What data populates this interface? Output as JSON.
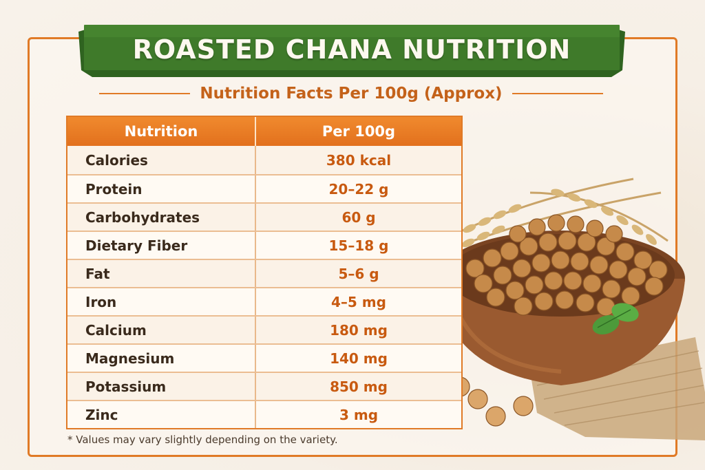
{
  "header": {
    "title": "ROASTED CHANA NUTRITION",
    "subtitle": "Nutrition Facts Per 100g (Approx)"
  },
  "table": {
    "columns": [
      "Nutrition",
      "Per 100g"
    ],
    "rows": [
      {
        "name": "Calories",
        "value": "380 kcal"
      },
      {
        "name": "Protein",
        "value": "20–22 g"
      },
      {
        "name": "Carbohydrates",
        "value": "60 g"
      },
      {
        "name": "Dietary Fiber",
        "value": "15–18 g"
      },
      {
        "name": "Fat",
        "value": "5–6 g"
      },
      {
        "name": "Iron",
        "value": "4–5 mg"
      },
      {
        "name": "Calcium",
        "value": "180 mg"
      },
      {
        "name": "Magnesium",
        "value": "140 mg"
      },
      {
        "name": "Potassium",
        "value": "850 mg"
      },
      {
        "name": "Zinc",
        "value": "3 mg"
      }
    ]
  },
  "footnote": "* Values may vary slightly depending on the variety.",
  "colors": {
    "banner_green": "#3f7a2a",
    "accent_orange": "#e07a26",
    "value_orange": "#c85a10"
  },
  "illustration": {
    "icons": [
      "wheat-icon",
      "bowl-icon",
      "chickpea-icon",
      "mint-leaf-icon",
      "burlap-cloth-icon"
    ]
  }
}
